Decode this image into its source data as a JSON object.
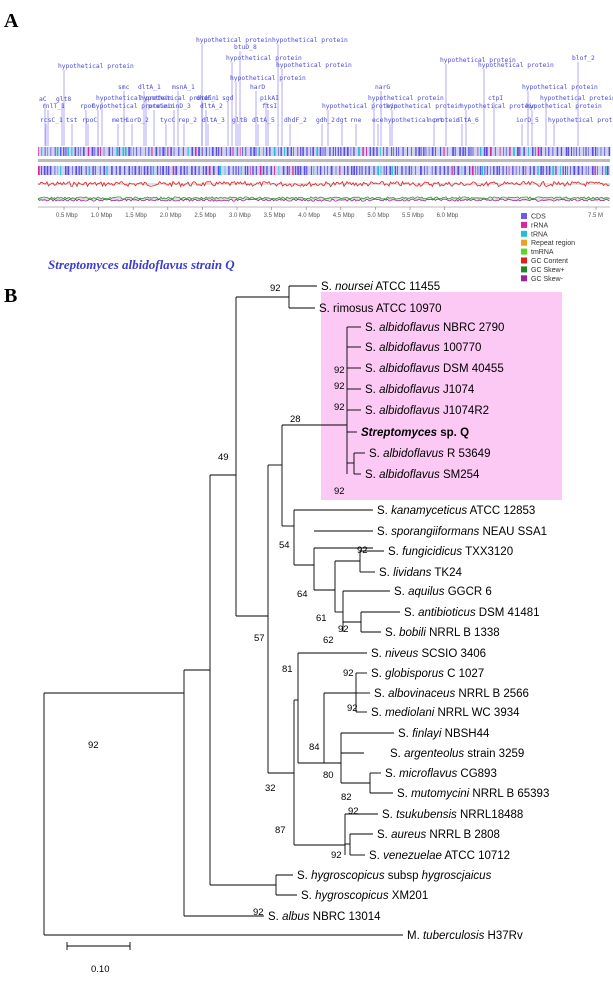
{
  "panelA": {
    "letter": "A",
    "strain_title": "Streptomyces albidoflavus strain Q",
    "gene_labels": [
      {
        "text": "hypothetical protein",
        "x": 196,
        "y": 42
      },
      {
        "text": "btuD_8",
        "x": 234,
        "y": 49
      },
      {
        "text": "hypothetical protein",
        "x": 272,
        "y": 42
      },
      {
        "text": "hypothetical protein",
        "x": 226,
        "y": 60
      },
      {
        "text": "hypothetical protein",
        "x": 276,
        "y": 67
      },
      {
        "text": "hypothetical protein",
        "x": 58,
        "y": 68
      },
      {
        "text": "hypothetical protein",
        "x": 440,
        "y": 62
      },
      {
        "text": "blof_2",
        "x": 572,
        "y": 60
      },
      {
        "text": "hypothetical protein",
        "x": 478,
        "y": 67
      },
      {
        "text": "hypothetical protein",
        "x": 230,
        "y": 80
      },
      {
        "text": "aC",
        "x": 39,
        "y": 101
      },
      {
        "text": "glt8",
        "x": 56,
        "y": 101
      },
      {
        "text": "smc",
        "x": 118,
        "y": 89
      },
      {
        "text": "dltA_1",
        "x": 138,
        "y": 89
      },
      {
        "text": "msnA_1",
        "x": 172,
        "y": 89
      },
      {
        "text": "harD",
        "x": 250,
        "y": 89
      },
      {
        "text": "narG",
        "x": 375,
        "y": 89
      },
      {
        "text": "hypothetical protein",
        "x": 522,
        "y": 89
      },
      {
        "text": "hypothetical protein",
        "x": 96,
        "y": 100
      },
      {
        "text": "hypothetical protein",
        "x": 140,
        "y": 100
      },
      {
        "text": "dhdF_1",
        "x": 196,
        "y": 100
      },
      {
        "text": "sgd",
        "x": 222,
        "y": 100
      },
      {
        "text": "pikAI",
        "x": 260,
        "y": 100
      },
      {
        "text": "hypothetical protein",
        "x": 368,
        "y": 100
      },
      {
        "text": "ctpI",
        "x": 488,
        "y": 100
      },
      {
        "text": "hypothetical protein",
        "x": 540,
        "y": 100
      },
      {
        "text": "rnlT_1",
        "x": 42,
        "y": 108
      },
      {
        "text": "rpoC",
        "x": 80,
        "y": 108
      },
      {
        "text": "hypothetical protein",
        "x": 92,
        "y": 108
      },
      {
        "text": "protein",
        "x": 148,
        "y": 108
      },
      {
        "text": "cinD_3",
        "x": 168,
        "y": 108
      },
      {
        "text": "dltA_2",
        "x": 200,
        "y": 108
      },
      {
        "text": "ftsI",
        "x": 262,
        "y": 108
      },
      {
        "text": "hypothetical protein",
        "x": 322,
        "y": 108
      },
      {
        "text": "hypothetical protein",
        "x": 386,
        "y": 108
      },
      {
        "text": "hypothetical protein",
        "x": 460,
        "y": 108
      },
      {
        "text": "hypothetical protein",
        "x": 526,
        "y": 108
      },
      {
        "text": "rcsC_1",
        "x": 40,
        "y": 122
      },
      {
        "text": "tst",
        "x": 66,
        "y": 122
      },
      {
        "text": "rpoC",
        "x": 82,
        "y": 122
      },
      {
        "text": "metH",
        "x": 112,
        "y": 122
      },
      {
        "text": "iorD_2",
        "x": 126,
        "y": 122
      },
      {
        "text": "tycC",
        "x": 160,
        "y": 122
      },
      {
        "text": "rep_2",
        "x": 178,
        "y": 122
      },
      {
        "text": "dltA_3",
        "x": 202,
        "y": 122
      },
      {
        "text": "gltB",
        "x": 232,
        "y": 122
      },
      {
        "text": "dltA_5",
        "x": 252,
        "y": 122
      },
      {
        "text": "dhdF_2",
        "x": 284,
        "y": 122
      },
      {
        "text": "gdh_2",
        "x": 316,
        "y": 122
      },
      {
        "text": "dgt",
        "x": 336,
        "y": 122
      },
      {
        "text": "rne",
        "x": 350,
        "y": 122
      },
      {
        "text": "ece",
        "x": 372,
        "y": 122
      },
      {
        "text": "hypothetical protein",
        "x": 384,
        "y": 122
      },
      {
        "text": "ncrt",
        "x": 428,
        "y": 122
      },
      {
        "text": "dltA_6",
        "x": 456,
        "y": 122
      },
      {
        "text": "iorD_5",
        "x": 516,
        "y": 122
      },
      {
        "text": "hypothetical protein",
        "x": 548,
        "y": 122
      }
    ],
    "axis_ticks": [
      "0.5 Mbp",
      "1.0 Mbp",
      "1.5 Mbp",
      "2.0 Mbp",
      "2.5 Mbp",
      "3.0 Mbp",
      "3.5 Mbp",
      "4.0 Mbp",
      "4.5 Mbp",
      "5.0 Mbp",
      "5.5 Mbp",
      "6.0 Mbp",
      "7.5 M"
    ],
    "legend": [
      {
        "label": "CDS",
        "color": "#6a5cf0"
      },
      {
        "label": "rRNA",
        "color": "#e0249c"
      },
      {
        "label": "tRNA",
        "color": "#20c0d8"
      },
      {
        "label": "Repeat region",
        "color": "#f0a020"
      },
      {
        "label": "tmRNA",
        "color": "#58d820"
      },
      {
        "label": "GC Content",
        "color": "#e02020"
      },
      {
        "label": "GC Skew+",
        "color": "#208820"
      },
      {
        "label": "GC Skew-",
        "color": "#a020a0"
      }
    ]
  },
  "panelB": {
    "letter": "B",
    "highlight_color": "#fbc9f4",
    "taxa": [
      {
        "id": "noursei",
        "name": "S. noursei",
        "suffix": " ATCC 11455",
        "italic_name": "noursei",
        "prefix": "S. ",
        "bold": false
      },
      {
        "id": "rimosus",
        "name": "S. rimosus",
        "suffix": " ATCC 10970",
        "italic_name": "",
        "prefix": "S. rimosus",
        "bold": false
      },
      {
        "id": "alb2790",
        "prefix": "S. ",
        "italic_name": "albidoflavus",
        "suffix": " NBRC 2790",
        "bold": false
      },
      {
        "id": "alb100770",
        "prefix": "S. ",
        "italic_name": "albidoflavus",
        "suffix": " 100770",
        "bold": false
      },
      {
        "id": "albDSM",
        "prefix": "S. ",
        "italic_name": "albidoflavus",
        "suffix": " DSM 40455",
        "bold": false
      },
      {
        "id": "albJ1074",
        "prefix": "S. ",
        "italic_name": "albidoflavus",
        "suffix": " J1074",
        "bold": false
      },
      {
        "id": "albJ1074R2",
        "prefix": "S. ",
        "italic_name": "albidoflavus",
        "suffix": " J1074R2",
        "bold": false
      },
      {
        "id": "spQ",
        "prefix": "",
        "italic_name": "Streptomyces",
        "suffix": " sp. Q",
        "bold": true
      },
      {
        "id": "albR",
        "prefix": "S. ",
        "italic_name": "albidoflavus",
        "suffix": " R 53649",
        "bold": false
      },
      {
        "id": "albSM",
        "prefix": "S. ",
        "italic_name": "albidoflavus",
        "suffix": " SM254",
        "bold": false
      },
      {
        "id": "kana",
        "prefix": "S. ",
        "italic_name": "kanamyceticus",
        "suffix": " ATCC 12853",
        "bold": false
      },
      {
        "id": "spor",
        "prefix": "S. ",
        "italic_name": "sporangiiformans",
        "suffix": " NEAU SSA1",
        "bold": false
      },
      {
        "id": "fung",
        "prefix": "S. ",
        "italic_name": "fungicidicus",
        "suffix": " TXX3120",
        "bold": false
      },
      {
        "id": "livi",
        "prefix": "S. ",
        "italic_name": "lividans",
        "suffix": " TK24",
        "bold": false
      },
      {
        "id": "aqui",
        "prefix": "S. ",
        "italic_name": "aquilus",
        "suffix": " GGCR 6",
        "bold": false
      },
      {
        "id": "anti",
        "prefix": "S. ",
        "italic_name": "antibioticus",
        "suffix": " DSM 41481",
        "bold": false
      },
      {
        "id": "bobi",
        "prefix": "S. ",
        "italic_name": "bobili",
        "suffix": " NRRL B 1338",
        "bold": false
      },
      {
        "id": "nive",
        "prefix": "S. ",
        "italic_name": "niveus",
        "suffix": " SCSIO 3406",
        "bold": false
      },
      {
        "id": "glob",
        "prefix": "S. ",
        "italic_name": "globisporus",
        "suffix": " C 1027",
        "bold": false
      },
      {
        "id": "albo",
        "prefix": "S. ",
        "italic_name": "albovinaceus",
        "suffix": " NRRL B 2566",
        "bold": false
      },
      {
        "id": "medi",
        "prefix": "S. ",
        "italic_name": "mediolani",
        "suffix": " NRRL WC 3934",
        "bold": false
      },
      {
        "id": "finl",
        "prefix": "S. ",
        "italic_name": "finlayi",
        "suffix": " NBSH44",
        "bold": false
      },
      {
        "id": "arge",
        "prefix": "S. ",
        "italic_name": "argenteolus",
        "suffix": " strain 3259",
        "bold": false
      },
      {
        "id": "micr",
        "prefix": "S. ",
        "italic_name": "microflavus",
        "suffix": " CG893",
        "bold": false
      },
      {
        "id": "muto",
        "prefix": "S. ",
        "italic_name": "mutomycini",
        "suffix": " NRRL B 65393",
        "bold": false
      },
      {
        "id": "tsuk",
        "prefix": "S. ",
        "italic_name": "tsukubensis",
        "suffix": " NRRL18488",
        "bold": false
      },
      {
        "id": "aure",
        "prefix": "S. ",
        "italic_name": "aureus",
        "suffix": " NRRL B 2808",
        "bold": false
      },
      {
        "id": "vene",
        "prefix": "S. ",
        "italic_name": "venezuelae",
        "suffix": " ATCC 10712",
        "bold": false
      },
      {
        "id": "hyg1",
        "prefix": "S. ",
        "italic_name": "hygroscopicus",
        "suffix": " subsp ",
        "suffix_italic": "hygroscjaicus",
        "bold": false
      },
      {
        "id": "hyg2",
        "prefix": "S. ",
        "italic_name": "hygroscopicus",
        "suffix": " XM201",
        "bold": false
      },
      {
        "id": "albus",
        "prefix": "S. ",
        "italic_name": "albus",
        "suffix": " NBRC 13014",
        "bold": false
      },
      {
        "id": "tube",
        "prefix": "M. ",
        "italic_name": "tuberculosis",
        "suffix": " H37Rv",
        "bold": false
      }
    ],
    "bootstraps": [
      "92",
      "92",
      "92",
      "92",
      "92",
      "28",
      "49",
      "54",
      "92",
      "64",
      "61",
      "62",
      "92",
      "57",
      "81",
      "92",
      "92",
      "84",
      "80",
      "82",
      "92",
      "32",
      "87",
      "92",
      "92",
      "92"
    ],
    "scale_label": "0.10"
  }
}
